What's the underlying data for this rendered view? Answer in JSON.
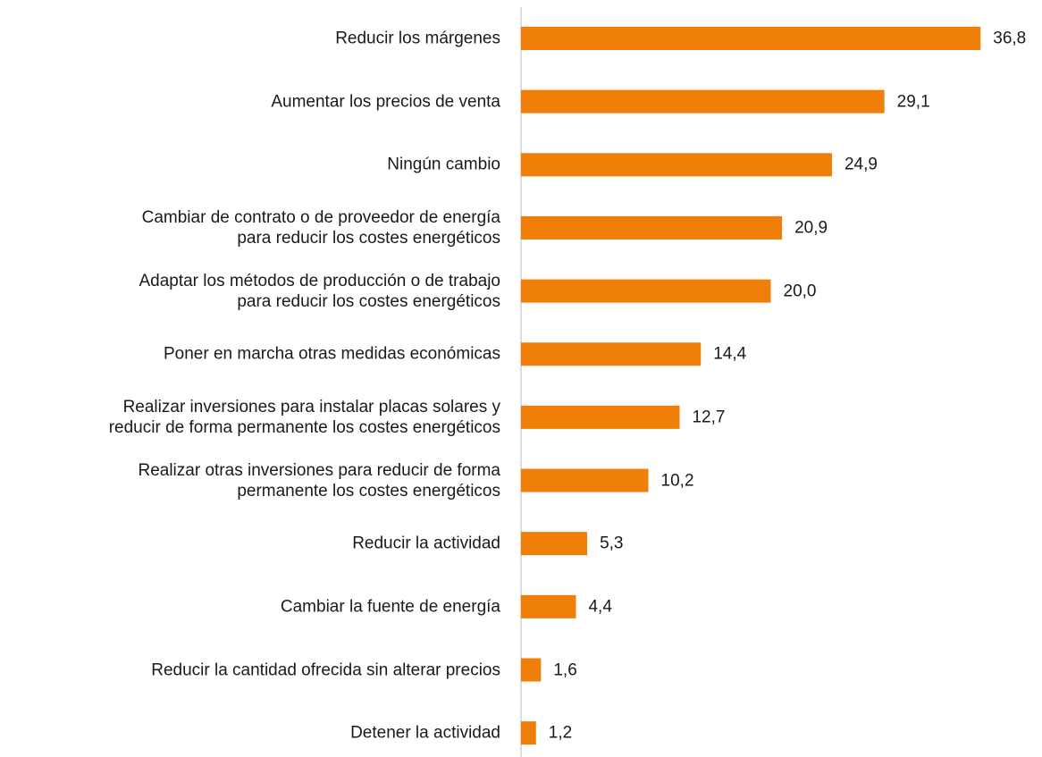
{
  "chart_data": {
    "type": "barh",
    "categories": [
      "Reducir los márgenes",
      "Aumentar los precios de venta",
      "Ningún cambio",
      "Cambiar de contrato o de proveedor de energía\npara reducir los costes energéticos",
      "Adaptar los métodos de producción o de trabajo\npara reducir los costes energéticos",
      "Poner en marcha otras medidas económicas",
      "Realizar inversiones para instalar placas solares y\nreducir de forma permanente los costes energéticos",
      "Realizar otras inversiones para reducir de forma\npermanente los costes energéticos",
      "Reducir la actividad",
      "Cambiar la fuente de energía",
      "Reducir la cantidad ofrecida sin alterar precios",
      "Detener la actividad"
    ],
    "values": [
      36.8,
      29.1,
      24.9,
      20.9,
      20.0,
      14.4,
      12.7,
      10.2,
      5.3,
      4.4,
      1.6,
      1.2
    ],
    "value_labels": [
      "36,8",
      "29,1",
      "24,9",
      "20,9",
      "20,0",
      "14,4",
      "12,7",
      "10,2",
      "5,3",
      "4,4",
      "1,6",
      "1,2"
    ],
    "color": "#f07f09",
    "xlim": [
      0,
      40
    ]
  }
}
